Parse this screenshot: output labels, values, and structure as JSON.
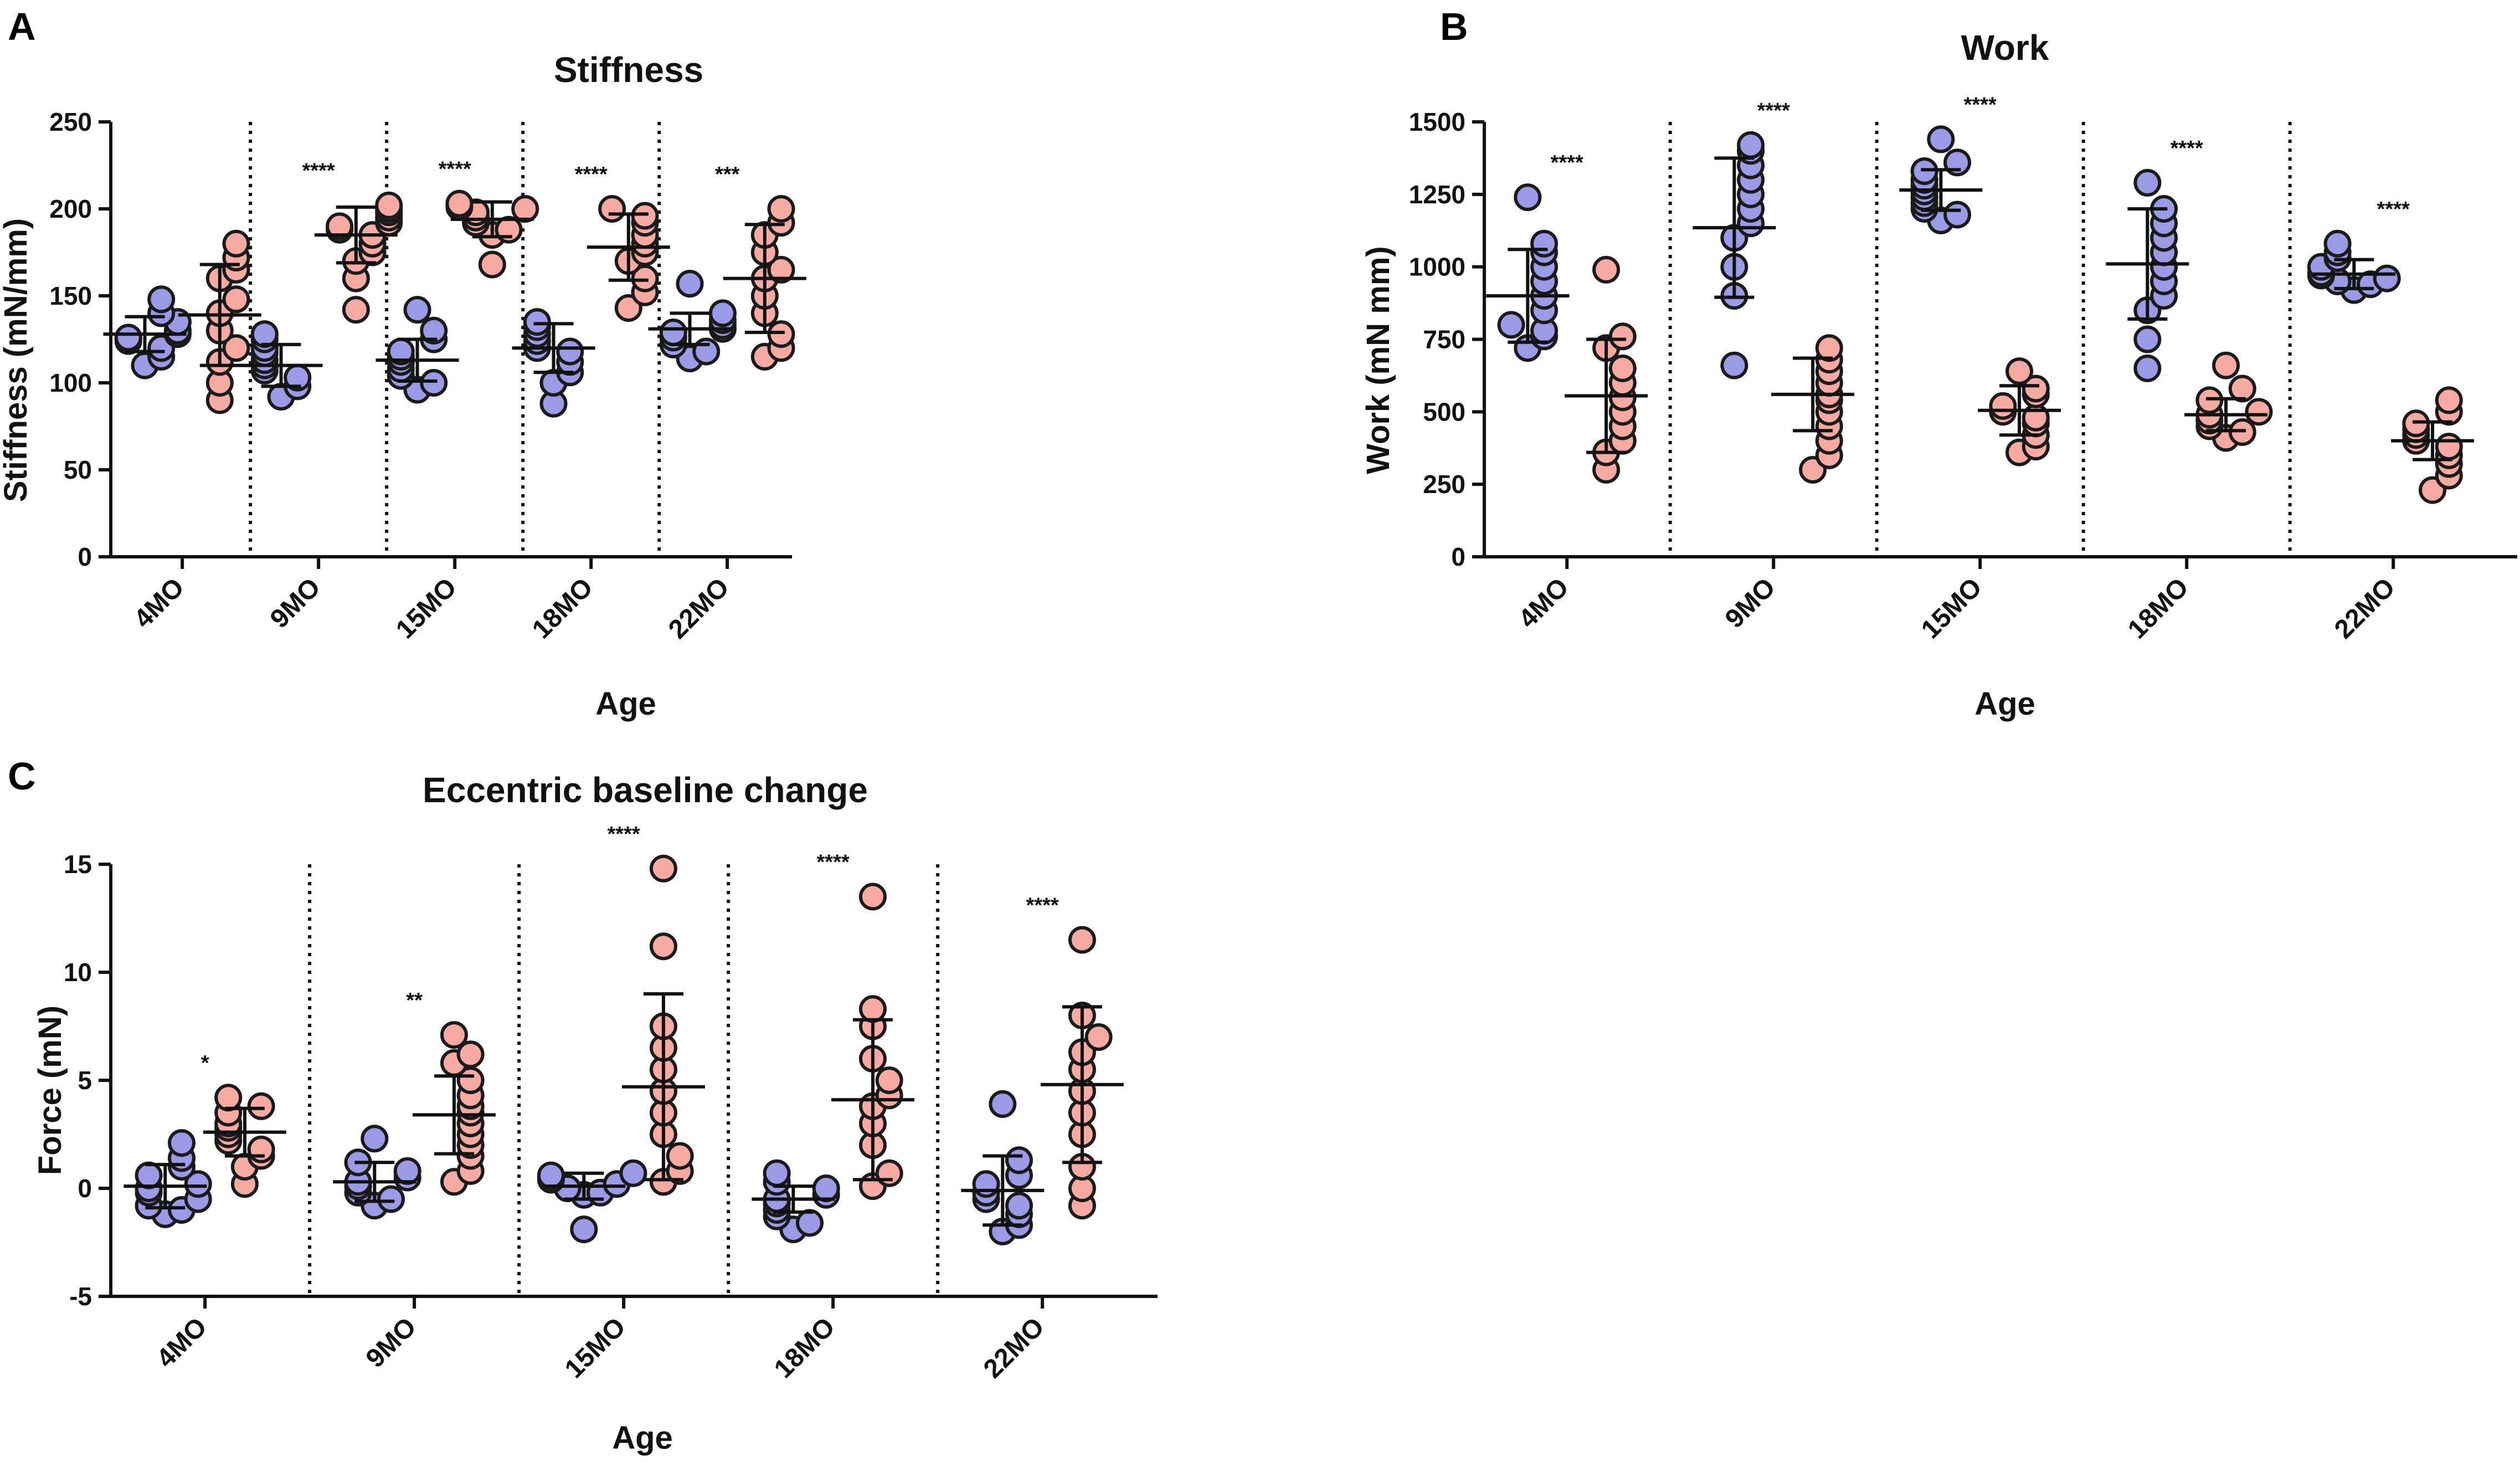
{
  "colors": {
    "group1": "#9a9ae6",
    "group2": "#f6aaa2",
    "ink": "#111111"
  },
  "chart_data": [
    {
      "id": "A",
      "type": "scatter",
      "panel_letter": "A",
      "title": "Stiffness",
      "xlabel": "Age",
      "ylabel": "Stiffness (mN/mm)",
      "ylim": [
        0,
        250
      ],
      "yticks": [
        "0",
        "50",
        "100",
        "150",
        "200",
        "250"
      ],
      "yticks_values": [
        0,
        50,
        100,
        150,
        200,
        250
      ],
      "categories": [
        "4MO",
        "9MO",
        "15MO",
        "18MO",
        "22MO"
      ],
      "significance": [
        "",
        "****",
        "****",
        "****",
        "***"
      ],
      "series": [
        {
          "name": "group1",
          "color": "#9a9ae6",
          "means": [
            128,
            110,
            113,
            120,
            131
          ],
          "sd": [
            10,
            12,
            12,
            14,
            9
          ],
          "points": [
            [
              148,
              140,
              135,
              130,
              128,
              126,
              124,
              120,
              115,
              110
            ],
            [
              128,
              125,
              120,
              117,
              113,
              110,
              107,
              103,
              98,
              92
            ],
            [
              142,
              130,
              125,
              118,
              115,
              112,
              108,
              104,
              100,
              96
            ],
            [
              135,
              132,
              128,
              124,
              120,
              118,
              112,
              106,
              100,
              88
            ],
            [
              157,
              140,
              136,
              133,
              131,
              129,
              126,
              122,
              118,
              114
            ]
          ]
        },
        {
          "name": "group2",
          "color": "#f6aaa2",
          "means": [
            139,
            185,
            194,
            178,
            160
          ],
          "sd": [
            29,
            16,
            10,
            19,
            31
          ],
          "points": [
            [
              180,
              172,
              165,
              160,
              148,
              140,
              130,
              120,
              112,
              100,
              90
            ],
            [
              202,
              200,
              198,
              195,
              192,
              190,
              188,
              185,
              180,
              175,
              170,
              160,
              142
            ],
            [
              203,
              201,
              200,
              198,
              195,
              192,
              188,
              185,
              168
            ],
            [
              200,
              196,
              192,
              185,
              180,
              175,
              170,
              160,
              152,
              143
            ],
            [
              200,
              192,
              185,
              175,
              165,
              160,
              150,
              140,
              128,
              120,
              115
            ]
          ]
        }
      ]
    },
    {
      "id": "B",
      "type": "scatter",
      "panel_letter": "B",
      "title": "Work",
      "xlabel": "Age",
      "ylabel": "Work (mN mm)",
      "ylim": [
        0,
        1500
      ],
      "yticks": [
        "0",
        "250",
        "500",
        "750",
        "1000",
        "1250",
        "1500"
      ],
      "yticks_values": [
        0,
        250,
        500,
        750,
        1000,
        1250,
        1500
      ],
      "categories": [
        "4MO",
        "9MO",
        "15MO",
        "18MO",
        "22MO"
      ],
      "significance": [
        "****",
        "****",
        "****",
        "****",
        "****"
      ],
      "series": [
        {
          "name": "group1",
          "color": "#9a9ae6",
          "means": [
            900,
            1135,
            1265,
            1010,
            975
          ],
          "sd": [
            160,
            240,
            70,
            190,
            50
          ],
          "points": [
            [
              1240,
              1080,
              1050,
              1000,
              950,
              900,
              850,
              800,
              780,
              760,
              720
            ],
            [
              1420,
              1400,
              1350,
              1300,
              1250,
              1200,
              1150,
              1100,
              1000,
              900,
              660
            ],
            [
              1440,
              1360,
              1330,
              1300,
              1280,
              1260,
              1240,
              1220,
              1200,
              1180,
              1160
            ],
            [
              1290,
              1200,
              1150,
              1100,
              1050,
              1000,
              950,
              900,
              850,
              750,
              650
            ],
            [
              1080,
              1050,
              1030,
              1000,
              980,
              970,
              960,
              950,
              940,
              920
            ]
          ]
        },
        {
          "name": "group2",
          "color": "#f6aaa2",
          "means": [
            555,
            560,
            505,
            490,
            400
          ],
          "sd": [
            195,
            125,
            85,
            55,
            65
          ],
          "points": [
            [
              990,
              760,
              720,
              650,
              600,
              550,
              500,
              450,
              400,
              360,
              300
            ],
            [
              720,
              680,
              640,
              600,
              560,
              540,
              500,
              450,
              400,
              350,
              300
            ],
            [
              640,
              580,
              560,
              520,
              500,
              480,
              460,
              420,
              380,
              360
            ],
            [
              660,
              580,
              540,
              500,
              490,
              470,
              450,
              430,
              410
            ],
            [
              540,
              500,
              460,
              440,
              420,
              400,
              380,
              350,
              320,
              280,
              230
            ]
          ]
        }
      ]
    },
    {
      "id": "C",
      "type": "scatter",
      "panel_letter": "C",
      "title": "Eccentric baseline change",
      "xlabel": "Age",
      "ylabel": "Force (mN)",
      "ylim": [
        -5,
        15
      ],
      "yticks": [
        "-5",
        "0",
        "5",
        "10",
        "15"
      ],
      "yticks_values": [
        -5,
        0,
        5,
        10,
        15
      ],
      "categories": [
        "4MO",
        "9MO",
        "15MO",
        "18MO",
        "22MO"
      ],
      "significance": [
        "*",
        "**",
        "****",
        "****",
        "****"
      ],
      "series": [
        {
          "name": "group1",
          "color": "#9a9ae6",
          "means": [
            0.1,
            0.3,
            0.1,
            -0.5,
            -0.1
          ],
          "sd": [
            1.0,
            0.9,
            0.6,
            0.6,
            1.6
          ],
          "points": [
            [
              2.1,
              1.4,
              1.0,
              0.6,
              0.2,
              0.0,
              -0.2,
              -0.5,
              -0.8,
              -1.0,
              -1.2
            ],
            [
              2.3,
              1.2,
              0.8,
              0.5,
              0.3,
              0.1,
              -0.2,
              -0.5,
              -0.8
            ],
            [
              0.7,
              0.6,
              0.5,
              0.4,
              0.2,
              0.0,
              -0.2,
              -0.3,
              -1.9
            ],
            [
              0.7,
              0.3,
              0.0,
              -0.3,
              -0.5,
              -0.7,
              -1.0,
              -1.3,
              -1.6,
              -1.9
            ],
            [
              3.9,
              1.3,
              0.6,
              0.2,
              -0.2,
              -0.5,
              -0.8,
              -1.2,
              -1.7,
              -2.0
            ]
          ]
        },
        {
          "name": "group2",
          "color": "#f6aaa2",
          "means": [
            2.6,
            3.4,
            4.7,
            4.1,
            4.8
          ],
          "sd": [
            1.1,
            1.8,
            4.3,
            3.7,
            3.6
          ],
          "points": [
            [
              4.2,
              3.8,
              3.5,
              3.0,
              2.8,
              2.5,
              2.2,
              1.8,
              1.5,
              1.0,
              0.2
            ],
            [
              7.1,
              6.2,
              5.8,
              5.0,
              4.3,
              3.8,
              3.5,
              3.0,
              2.5,
              2.0,
              1.5,
              0.8,
              0.3
            ],
            [
              14.8,
              11.2,
              7.5,
              6.5,
              5.5,
              4.5,
              3.5,
              2.5,
              1.5,
              0.8,
              0.3
            ],
            [
              13.5,
              8.3,
              7.5,
              6.0,
              5.0,
              4.3,
              3.8,
              3.0,
              2.0,
              0.7,
              0.1
            ],
            [
              11.5,
              8.0,
              7.0,
              6.3,
              5.5,
              4.5,
              3.5,
              2.5,
              1.0,
              0.0,
              -0.8
            ]
          ]
        }
      ]
    }
  ]
}
